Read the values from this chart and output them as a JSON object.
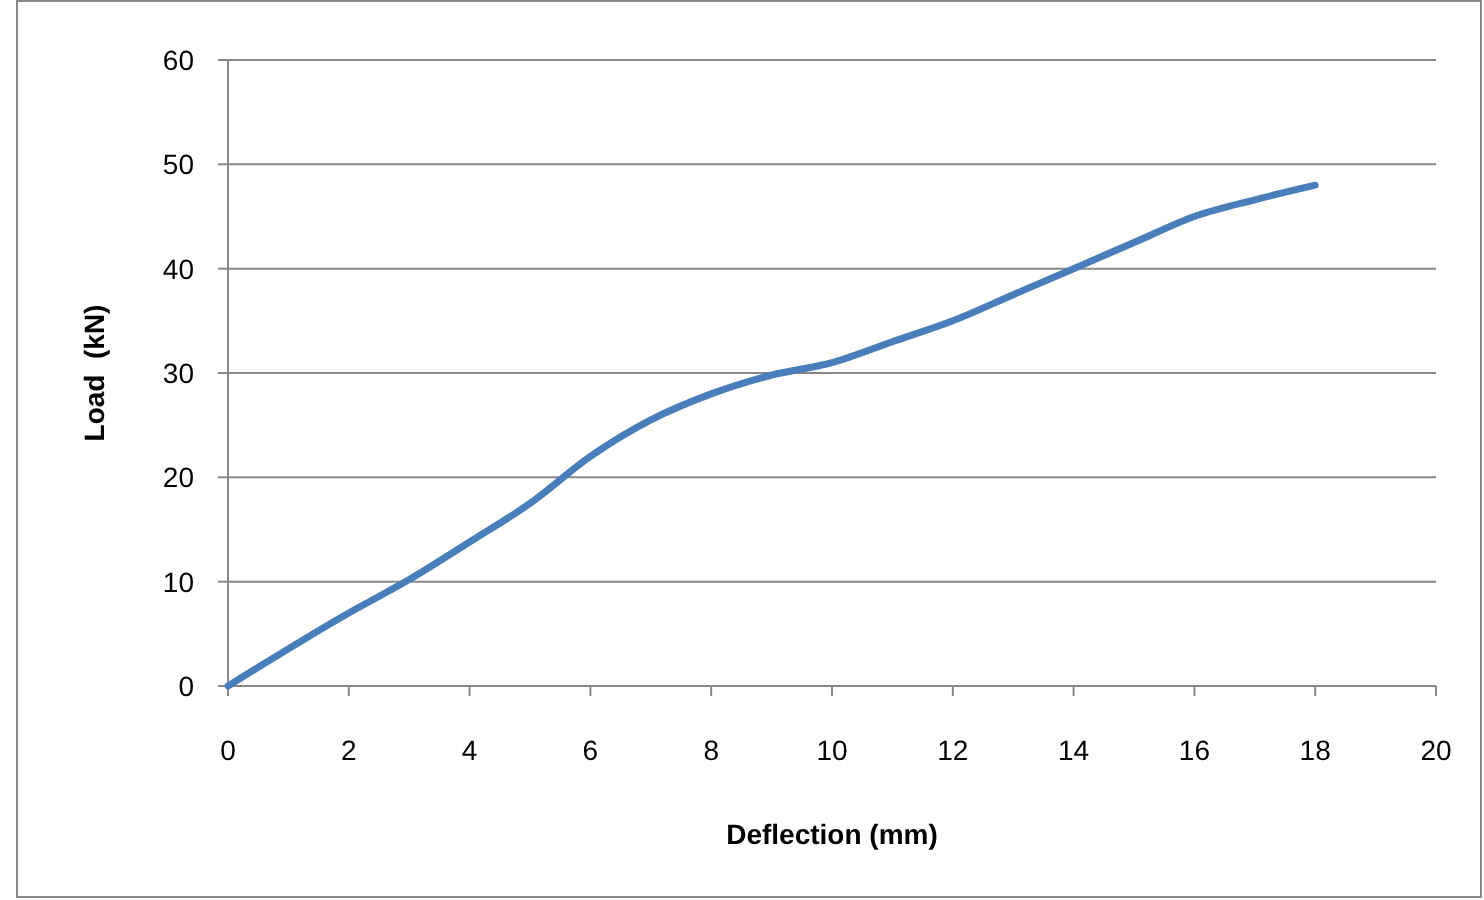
{
  "chart_data": {
    "type": "line",
    "xlabel": "Deflection (mm)",
    "ylabel": "Load  (kN)",
    "x": [
      0,
      2,
      3,
      4,
      5,
      6,
      7,
      8,
      9,
      10,
      11,
      12,
      13,
      14,
      15,
      16,
      17,
      18
    ],
    "series": [
      {
        "color": "#4a7ebb",
        "values": [
          0,
          7,
          10.2,
          13.8,
          17.5,
          22,
          25.5,
          28,
          29.8,
          31,
          33,
          35,
          37.5,
          40,
          42.5,
          45,
          46.6,
          48
        ]
      }
    ],
    "xlim": [
      0,
      20
    ],
    "xticks": [
      0,
      2,
      4,
      6,
      8,
      10,
      12,
      14,
      16,
      18,
      20
    ],
    "ylim": [
      0,
      60
    ],
    "yticks": [
      0,
      10,
      20,
      30,
      40,
      50,
      60
    ],
    "grid": "y",
    "marker": "none",
    "line_style": "solid"
  }
}
